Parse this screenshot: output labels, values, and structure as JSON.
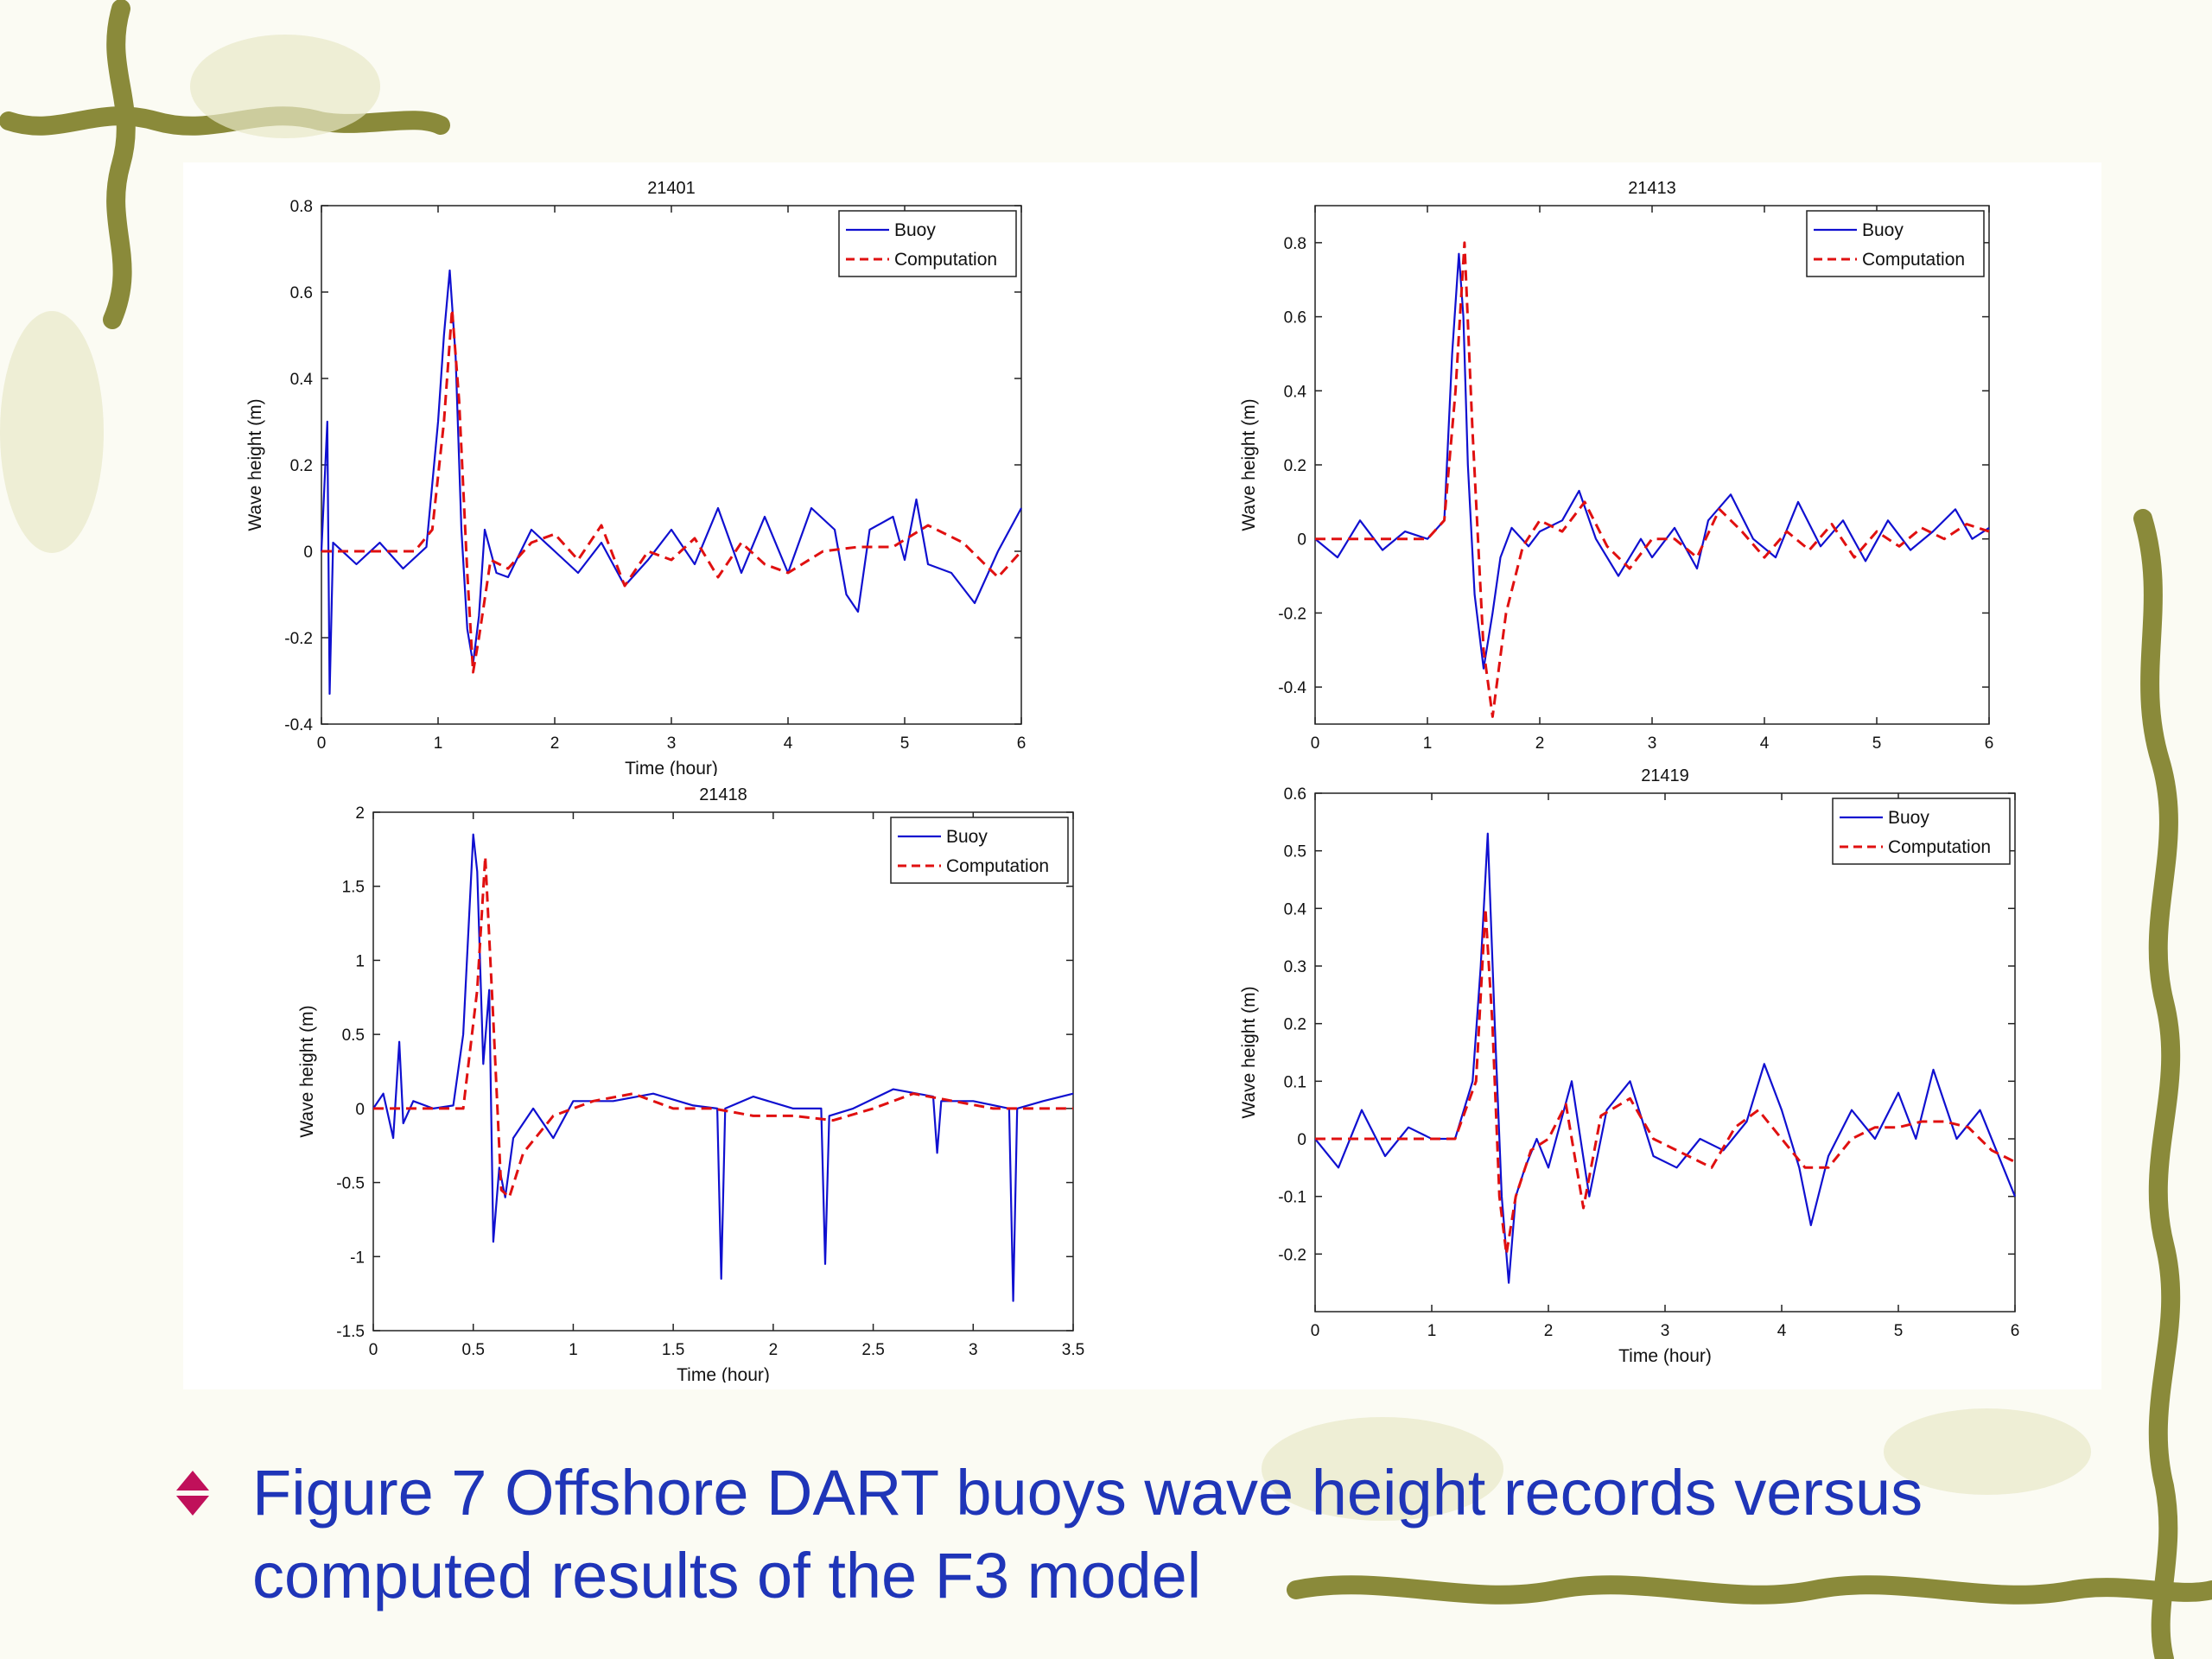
{
  "caption": {
    "text": "Figure 7 Offshore DART buoys wave height records versus computed results of the F3 model",
    "bullet_icon": "diamond-arrows-icon",
    "text_color": "#1f35b8",
    "bullet_color": "#c0105a"
  },
  "colors": {
    "buoy": "#1010d0",
    "computation": "#e01010",
    "vine": "#8a8a3a"
  },
  "legend": {
    "series": [
      "Buoy",
      "Computation"
    ]
  },
  "chart_data": [
    {
      "type": "line",
      "title": "21401",
      "xlabel": "Time (hour)",
      "ylabel": "Wave height (m)",
      "xlim": [
        0,
        6
      ],
      "ylim": [
        -0.4,
        0.8
      ],
      "xticks": [
        0,
        1,
        2,
        3,
        4,
        5,
        6
      ],
      "yticks": [
        -0.4,
        -0.2,
        0,
        0.2,
        0.4,
        0.6,
        0.8
      ],
      "legend_position": "top-right",
      "series": [
        {
          "name": "Buoy",
          "style": "solid",
          "x": [
            0,
            0.05,
            0.07,
            0.1,
            0.3,
            0.5,
            0.7,
            0.9,
            1.0,
            1.05,
            1.1,
            1.15,
            1.2,
            1.25,
            1.3,
            1.35,
            1.4,
            1.5,
            1.6,
            1.8,
            2.0,
            2.2,
            2.4,
            2.6,
            2.8,
            3.0,
            3.2,
            3.4,
            3.6,
            3.8,
            4.0,
            4.2,
            4.4,
            4.5,
            4.6,
            4.7,
            4.9,
            5.0,
            5.1,
            5.2,
            5.4,
            5.6,
            5.8,
            6.0
          ],
          "y": [
            0.0,
            0.3,
            -0.33,
            0.02,
            -0.03,
            0.02,
            -0.04,
            0.01,
            0.3,
            0.5,
            0.65,
            0.45,
            0.05,
            -0.18,
            -0.26,
            -0.15,
            0.05,
            -0.05,
            -0.06,
            0.05,
            0.0,
            -0.05,
            0.02,
            -0.08,
            -0.02,
            0.05,
            -0.03,
            0.1,
            -0.05,
            0.08,
            -0.05,
            0.1,
            0.05,
            -0.1,
            -0.14,
            0.05,
            0.08,
            -0.02,
            0.12,
            -0.03,
            -0.05,
            -0.12,
            0.0,
            0.1
          ]
        },
        {
          "name": "Computation",
          "style": "dashed",
          "x": [
            0,
            0.4,
            0.8,
            0.95,
            1.05,
            1.12,
            1.18,
            1.25,
            1.3,
            1.35,
            1.45,
            1.6,
            1.8,
            2.0,
            2.2,
            2.4,
            2.6,
            2.8,
            3.0,
            3.2,
            3.4,
            3.6,
            3.8,
            4.0,
            4.3,
            4.6,
            4.9,
            5.2,
            5.5,
            5.8,
            6.0
          ],
          "y": [
            0.0,
            0.0,
            0.0,
            0.05,
            0.3,
            0.56,
            0.35,
            -0.05,
            -0.28,
            -0.2,
            -0.02,
            -0.04,
            0.02,
            0.04,
            -0.02,
            0.06,
            -0.08,
            0.0,
            -0.02,
            0.03,
            -0.06,
            0.02,
            -0.03,
            -0.05,
            0.0,
            0.01,
            0.01,
            0.06,
            0.02,
            -0.06,
            0.0
          ]
        }
      ]
    },
    {
      "type": "line",
      "title": "21413",
      "xlabel": "Time (hour)",
      "ylabel": "Wave height (m)",
      "xlim": [
        0,
        6
      ],
      "ylim": [
        -0.5,
        0.9
      ],
      "xticks": [
        0,
        1,
        2,
        3,
        4,
        5,
        6
      ],
      "yticks": [
        -0.4,
        -0.2,
        0,
        0.2,
        0.4,
        0.6,
        0.8
      ],
      "legend_position": "top-right",
      "series": [
        {
          "name": "Buoy",
          "style": "solid",
          "x": [
            0,
            0.2,
            0.4,
            0.6,
            0.8,
            1.0,
            1.15,
            1.22,
            1.28,
            1.32,
            1.36,
            1.42,
            1.5,
            1.58,
            1.65,
            1.75,
            1.9,
            2.0,
            2.2,
            2.35,
            2.5,
            2.7,
            2.9,
            3.0,
            3.2,
            3.4,
            3.5,
            3.7,
            3.9,
            4.1,
            4.3,
            4.5,
            4.7,
            4.9,
            5.1,
            5.3,
            5.5,
            5.7,
            5.85,
            6.0
          ],
          "y": [
            0.0,
            -0.05,
            0.05,
            -0.03,
            0.02,
            0.0,
            0.05,
            0.5,
            0.77,
            0.6,
            0.2,
            -0.15,
            -0.35,
            -0.2,
            -0.05,
            0.03,
            -0.02,
            0.02,
            0.05,
            0.13,
            0.0,
            -0.1,
            0.0,
            -0.05,
            0.03,
            -0.08,
            0.05,
            0.12,
            0.0,
            -0.05,
            0.1,
            -0.02,
            0.05,
            -0.06,
            0.05,
            -0.03,
            0.02,
            0.08,
            0.0,
            0.03
          ]
        },
        {
          "name": "Computation",
          "style": "dashed",
          "x": [
            0,
            0.6,
            1.0,
            1.15,
            1.25,
            1.33,
            1.4,
            1.5,
            1.58,
            1.7,
            1.85,
            2.0,
            2.2,
            2.4,
            2.6,
            2.8,
            3.0,
            3.2,
            3.4,
            3.6,
            3.8,
            4.0,
            4.2,
            4.4,
            4.6,
            4.8,
            5.0,
            5.2,
            5.4,
            5.6,
            5.8,
            6.0
          ],
          "y": [
            0.0,
            0.0,
            0.0,
            0.05,
            0.4,
            0.8,
            0.3,
            -0.3,
            -0.48,
            -0.2,
            -0.02,
            0.05,
            0.02,
            0.1,
            -0.02,
            -0.08,
            0.0,
            0.0,
            -0.05,
            0.08,
            0.02,
            -0.05,
            0.02,
            -0.03,
            0.04,
            -0.05,
            0.02,
            -0.02,
            0.03,
            0.0,
            0.04,
            0.02
          ]
        }
      ]
    },
    {
      "type": "line",
      "title": "21418",
      "xlabel": "Time (hour)",
      "ylabel": "Wave height (m)",
      "xlim": [
        0,
        3.5
      ],
      "ylim": [
        -1.5,
        2
      ],
      "xticks": [
        0,
        0.5,
        1,
        1.5,
        2,
        2.5,
        3,
        3.5
      ],
      "yticks": [
        -1.5,
        -1,
        -0.5,
        0,
        0.5,
        1,
        1.5,
        2
      ],
      "legend_position": "top-right",
      "series": [
        {
          "name": "Buoy",
          "style": "solid",
          "x": [
            0,
            0.05,
            0.1,
            0.13,
            0.15,
            0.2,
            0.3,
            0.4,
            0.45,
            0.5,
            0.52,
            0.55,
            0.58,
            0.6,
            0.63,
            0.66,
            0.7,
            0.8,
            0.9,
            1.0,
            1.2,
            1.4,
            1.6,
            1.72,
            1.74,
            1.76,
            1.9,
            2.1,
            2.24,
            2.26,
            2.28,
            2.4,
            2.6,
            2.8,
            2.82,
            2.84,
            3.0,
            3.18,
            3.2,
            3.22,
            3.35,
            3.5
          ],
          "y": [
            0.0,
            0.1,
            -0.2,
            0.45,
            -0.1,
            0.05,
            0.0,
            0.02,
            0.5,
            1.85,
            1.6,
            0.3,
            0.8,
            -0.9,
            -0.4,
            -0.6,
            -0.2,
            0.0,
            -0.2,
            0.05,
            0.05,
            0.1,
            0.02,
            0.0,
            -1.15,
            0.0,
            0.08,
            0.0,
            0.0,
            -1.05,
            -0.05,
            0.0,
            0.13,
            0.08,
            -0.3,
            0.05,
            0.05,
            0.0,
            -1.3,
            0.0,
            0.05,
            0.1
          ]
        },
        {
          "name": "Computation",
          "style": "dashed",
          "x": [
            0,
            0.3,
            0.45,
            0.52,
            0.56,
            0.6,
            0.64,
            0.68,
            0.75,
            0.9,
            1.1,
            1.3,
            1.5,
            1.7,
            1.9,
            2.1,
            2.3,
            2.5,
            2.7,
            2.9,
            3.1,
            3.3,
            3.5
          ],
          "y": [
            0.0,
            0.0,
            0.0,
            0.8,
            1.7,
            0.6,
            -0.55,
            -0.6,
            -0.3,
            -0.05,
            0.05,
            0.1,
            0.0,
            0.0,
            -0.05,
            -0.05,
            -0.08,
            0.0,
            0.1,
            0.05,
            0.0,
            0.0,
            0.0
          ]
        }
      ]
    },
    {
      "type": "line",
      "title": "21419",
      "xlabel": "Time (hour)",
      "ylabel": "Wave height (m)",
      "xlim": [
        0,
        6
      ],
      "ylim": [
        -0.3,
        0.6
      ],
      "xticks": [
        0,
        1,
        2,
        3,
        4,
        5,
        6
      ],
      "yticks": [
        -0.2,
        -0.1,
        0,
        0.1,
        0.2,
        0.3,
        0.4,
        0.5,
        0.6
      ],
      "legend_position": "top-right",
      "series": [
        {
          "name": "Buoy",
          "style": "solid",
          "x": [
            0,
            0.2,
            0.4,
            0.6,
            0.8,
            1.0,
            1.2,
            1.35,
            1.42,
            1.48,
            1.54,
            1.6,
            1.66,
            1.72,
            1.8,
            1.9,
            2.0,
            2.2,
            2.35,
            2.5,
            2.7,
            2.9,
            3.1,
            3.3,
            3.5,
            3.7,
            3.85,
            4.0,
            4.15,
            4.25,
            4.4,
            4.6,
            4.8,
            5.0,
            5.15,
            5.3,
            5.5,
            5.7,
            5.9,
            6.0
          ],
          "y": [
            0.0,
            -0.05,
            0.05,
            -0.03,
            0.02,
            0.0,
            0.0,
            0.1,
            0.3,
            0.53,
            0.2,
            -0.1,
            -0.25,
            -0.1,
            -0.05,
            0.0,
            -0.05,
            0.1,
            -0.1,
            0.05,
            0.1,
            -0.03,
            -0.05,
            0.0,
            -0.02,
            0.03,
            0.13,
            0.05,
            -0.05,
            -0.15,
            -0.03,
            0.05,
            0.0,
            0.08,
            0.0,
            0.12,
            0.0,
            0.05,
            -0.05,
            -0.1
          ]
        },
        {
          "name": "Computation",
          "style": "dashed",
          "x": [
            0,
            0.8,
            1.2,
            1.38,
            1.46,
            1.52,
            1.58,
            1.64,
            1.72,
            1.85,
            2.0,
            2.15,
            2.3,
            2.45,
            2.7,
            2.9,
            3.1,
            3.4,
            3.6,
            3.8,
            4.0,
            4.2,
            4.4,
            4.6,
            4.8,
            5.0,
            5.2,
            5.4,
            5.6,
            5.8,
            6.0
          ],
          "y": [
            0.0,
            0.0,
            0.0,
            0.1,
            0.4,
            0.2,
            -0.1,
            -0.2,
            -0.1,
            -0.02,
            0.0,
            0.06,
            -0.12,
            0.04,
            0.07,
            0.0,
            -0.02,
            -0.05,
            0.02,
            0.05,
            0.0,
            -0.05,
            -0.05,
            0.0,
            0.02,
            0.02,
            0.03,
            0.03,
            0.02,
            -0.02,
            -0.04
          ]
        }
      ]
    }
  ]
}
